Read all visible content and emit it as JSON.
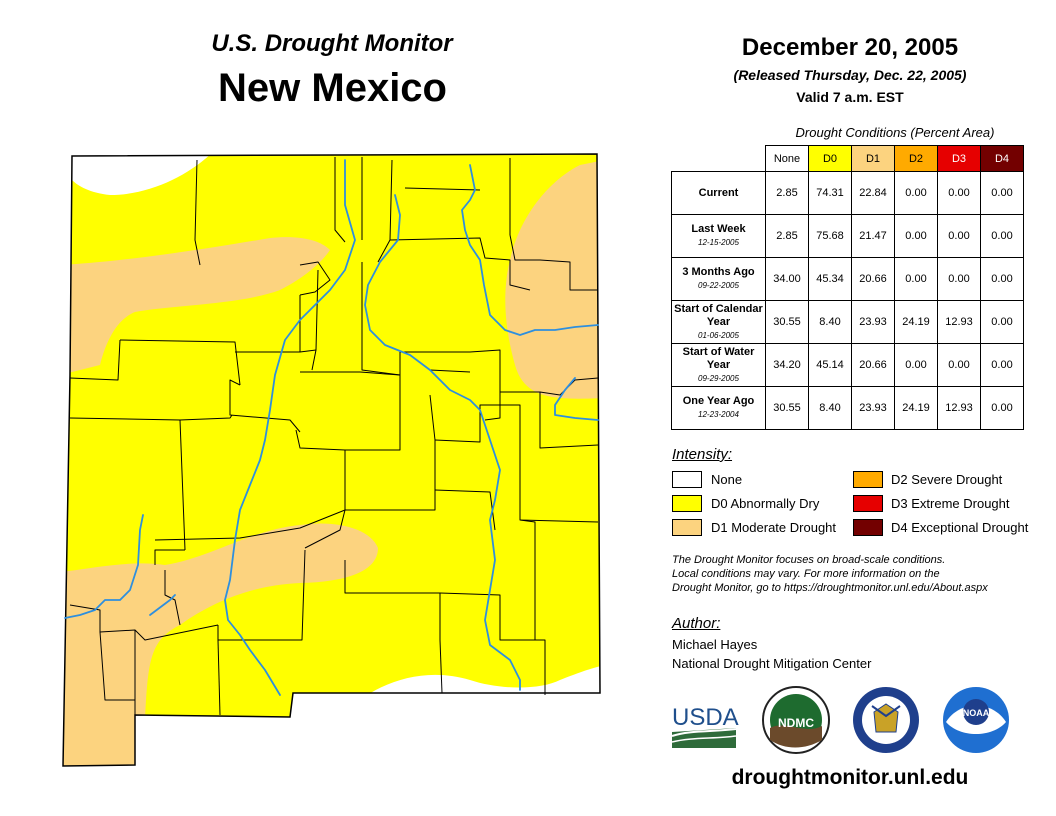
{
  "header": {
    "subtitle": "U.S. Drought Monitor",
    "state": "New Mexico",
    "date": "December 20, 2005",
    "released": "(Released Thursday, Dec. 22, 2005)",
    "valid": "Valid 7 a.m. EST"
  },
  "table": {
    "caption": "Drought Conditions (Percent Area)",
    "columns": [
      {
        "label": "None",
        "color": "#ffffff",
        "text_color": "#000000"
      },
      {
        "label": "D0",
        "color": "#ffff00",
        "text_color": "#000000"
      },
      {
        "label": "D1",
        "color": "#fcd37f",
        "text_color": "#000000"
      },
      {
        "label": "D2",
        "color": "#ffaa00",
        "text_color": "#000000"
      },
      {
        "label": "D3",
        "color": "#e60000",
        "text_color": "#ffffff"
      },
      {
        "label": "D4",
        "color": "#730000",
        "text_color": "#ffffff"
      }
    ],
    "rows": [
      {
        "label": "Current",
        "date": "",
        "values": [
          "2.85",
          "74.31",
          "22.84",
          "0.00",
          "0.00",
          "0.00"
        ]
      },
      {
        "label": "Last Week",
        "date": "12-15-2005",
        "values": [
          "2.85",
          "75.68",
          "21.47",
          "0.00",
          "0.00",
          "0.00"
        ]
      },
      {
        "label": "3 Months Ago",
        "date": "09-22-2005",
        "values": [
          "34.00",
          "45.34",
          "20.66",
          "0.00",
          "0.00",
          "0.00"
        ]
      },
      {
        "label": "Start of Calendar Year",
        "date": "01-06-2005",
        "values": [
          "30.55",
          "8.40",
          "23.93",
          "24.19",
          "12.93",
          "0.00"
        ]
      },
      {
        "label": "Start of Water Year",
        "date": "09-29-2005",
        "values": [
          "34.20",
          "45.14",
          "20.66",
          "0.00",
          "0.00",
          "0.00"
        ]
      },
      {
        "label": "One Year Ago",
        "date": "12-23-2004",
        "values": [
          "30.55",
          "8.40",
          "23.93",
          "24.19",
          "12.93",
          "0.00"
        ]
      }
    ]
  },
  "legend": {
    "title": "Intensity:",
    "items": [
      {
        "label": "None",
        "color": "#ffffff"
      },
      {
        "label": "D0 Abnormally Dry",
        "color": "#ffff00"
      },
      {
        "label": "D1 Moderate Drought",
        "color": "#fcd37f"
      },
      {
        "label": "D2 Severe Drought",
        "color": "#ffaa00"
      },
      {
        "label": "D3 Extreme Drought",
        "color": "#e60000"
      },
      {
        "label": "D4 Exceptional Drought",
        "color": "#730000"
      }
    ]
  },
  "note": {
    "line1": "The Drought Monitor focuses on broad-scale conditions.",
    "line2": "Local conditions may vary. For more information on the",
    "line3": "Drought Monitor, go to https://droughtmonitor.unl.edu/About.aspx"
  },
  "author": {
    "title": "Author:",
    "name": "Michael Hayes",
    "org": "National Drought Mitigation Center"
  },
  "logos": {
    "usda": "USDA",
    "ndmc": "NDMC",
    "noaa": "NOAA"
  },
  "website": "droughtmonitor.unl.edu",
  "colors": {
    "none": "#ffffff",
    "d0": "#ffff00",
    "d1": "#fcd37f",
    "river": "#2e8fde",
    "county": "#000000"
  }
}
